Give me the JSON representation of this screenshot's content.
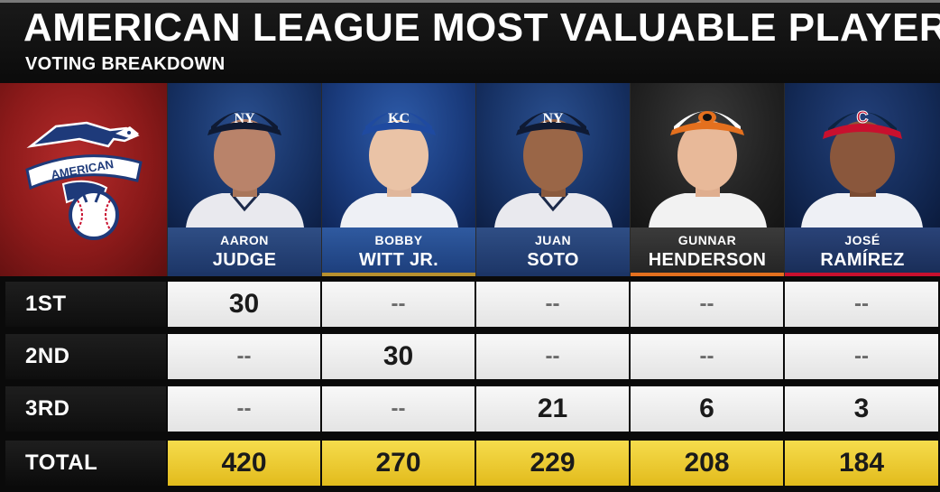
{
  "header": {
    "title": "AMERICAN LEAGUE MOST VALUABLE PLAYER",
    "subtitle": "VOTING BREAKDOWN"
  },
  "logo": {
    "league_text": "AMERICAN",
    "icon": "american-league-eagle-logo"
  },
  "players": [
    {
      "first": "AARON",
      "last": "JUDGE",
      "team_icon": "yankees-cap",
      "accent": "#1c3566"
    },
    {
      "first": "BOBBY",
      "last": "WITT JR.",
      "team_icon": "royals-cap",
      "accent": "#b8912f"
    },
    {
      "first": "JUAN",
      "last": "SOTO",
      "team_icon": "yankees-cap",
      "accent": "#1c3566"
    },
    {
      "first": "GUNNAR",
      "last": "HENDERSON",
      "team_icon": "orioles-cap",
      "accent": "#e4701e"
    },
    {
      "first": "JOSÉ",
      "last": "RAMÍREZ",
      "team_icon": "guardians-cap",
      "accent": "#c8102e"
    }
  ],
  "rows": [
    {
      "label": "1ST",
      "values": [
        "30",
        "--",
        "--",
        "--",
        "--"
      ]
    },
    {
      "label": "2ND",
      "values": [
        "--",
        "30",
        "--",
        "--",
        "--"
      ]
    },
    {
      "label": "3RD",
      "values": [
        "--",
        "--",
        "21",
        "6",
        "3"
      ]
    },
    {
      "label": "TOTAL",
      "values": [
        "420",
        "270",
        "229",
        "208",
        "184"
      ]
    }
  ]
}
